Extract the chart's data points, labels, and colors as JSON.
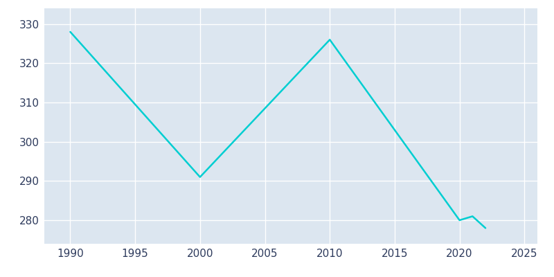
{
  "years": [
    1990,
    2000,
    2010,
    2020,
    2021,
    2022
  ],
  "population": [
    328,
    291,
    326,
    280,
    281,
    278
  ],
  "line_color": "#00CED1",
  "plot_bg_color": "#DCE6F0",
  "figure_bg_color": "#FFFFFF",
  "grid_color": "#FFFFFF",
  "text_color": "#2D3A5C",
  "xlim": [
    1988,
    2026
  ],
  "ylim": [
    274,
    334
  ],
  "xticks": [
    1990,
    1995,
    2000,
    2005,
    2010,
    2015,
    2020,
    2025
  ],
  "yticks": [
    280,
    290,
    300,
    310,
    320,
    330
  ],
  "line_width": 1.8,
  "figsize": [
    8.0,
    4.0
  ],
  "dpi": 100
}
